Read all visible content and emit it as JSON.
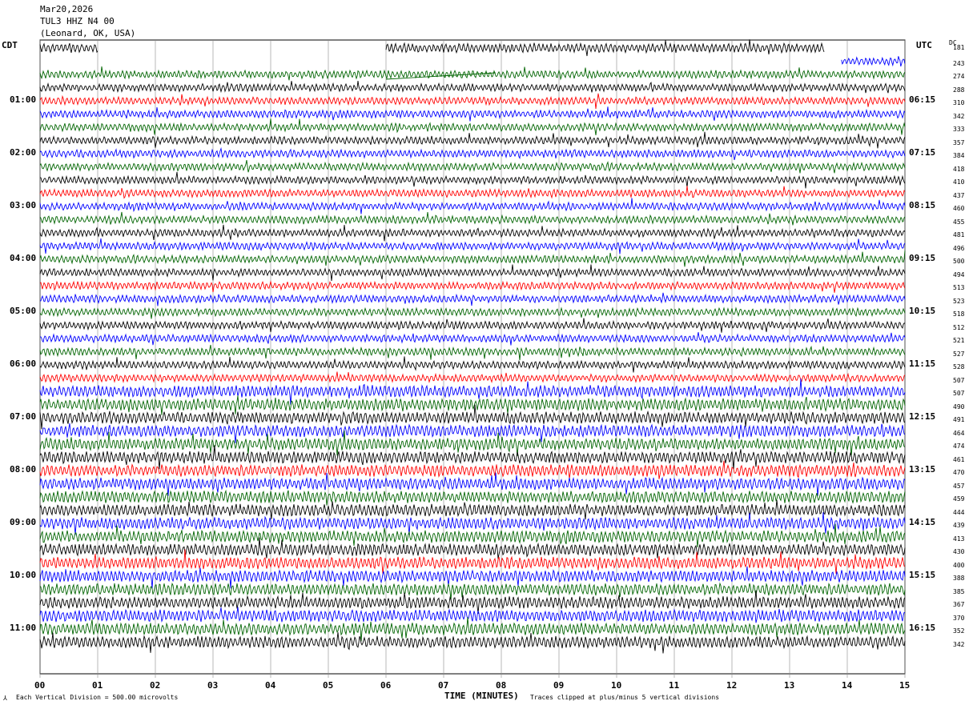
{
  "header": {
    "date": "Mar20,2026",
    "station": "TUL3 HHZ N4 00",
    "location": "(Leonard, OK, USA)"
  },
  "left_zone": "CDT",
  "right_zone": "UTC",
  "dc_label": "DC",
  "colors": {
    "black": "#000000",
    "red": "#ff0000",
    "blue": "#0000ff",
    "green": "#006400",
    "grid": "#000000"
  },
  "chart_data": {
    "type": "line",
    "title": "",
    "xlabel": "TIME (MINUTES)",
    "x_ticks": [
      "00",
      "01",
      "02",
      "03",
      "04",
      "05",
      "06",
      "07",
      "08",
      "09",
      "10",
      "11",
      "12",
      "13",
      "14",
      "15"
    ],
    "xlim": [
      0,
      15
    ],
    "minutes_per_line": 15,
    "left_time_labels": [
      "01:00",
      "02:00",
      "03:00",
      "04:00",
      "05:00",
      "06:00",
      "07:00",
      "08:00",
      "09:00",
      "10:00",
      "11:00"
    ],
    "right_time_labels": [
      "06:15",
      "07:15",
      "08:15",
      "09:15",
      "10:15",
      "11:15",
      "12:15",
      "13:15",
      "14:15",
      "15:15",
      "16:15"
    ],
    "trace_color_cycle": [
      "black",
      "blue",
      "green",
      "black",
      "red",
      "blue",
      "green"
    ],
    "dc_offsets": [
      "181",
      "243",
      "274",
      "288",
      "310",
      "342",
      "333",
      "357",
      "384",
      "418",
      "410",
      "437",
      "460",
      "455",
      "481",
      "496",
      "500",
      "494",
      "513",
      "523",
      "518",
      "512",
      "521",
      "527",
      "528",
      "507",
      "507",
      "490",
      "491",
      "464",
      "474",
      "461",
      "470",
      "457",
      "459",
      "444",
      "439",
      "413",
      "430",
      "400",
      "388",
      "385",
      "367",
      "370",
      "352",
      "342"
    ],
    "first_line_data_minutes": [
      [
        0,
        1.0
      ],
      [
        6.0,
        13.6
      ]
    ],
    "second_line_data_minutes": [
      [
        13.9,
        15.0
      ]
    ],
    "clipped_gap_minutes": [
      6.0,
      7.9
    ]
  },
  "footer": {
    "scale_note": "Each Vertical Division =  500.00 microvolts",
    "clip_note": "Traces clipped at plus/minus 5 vertical divisions"
  }
}
